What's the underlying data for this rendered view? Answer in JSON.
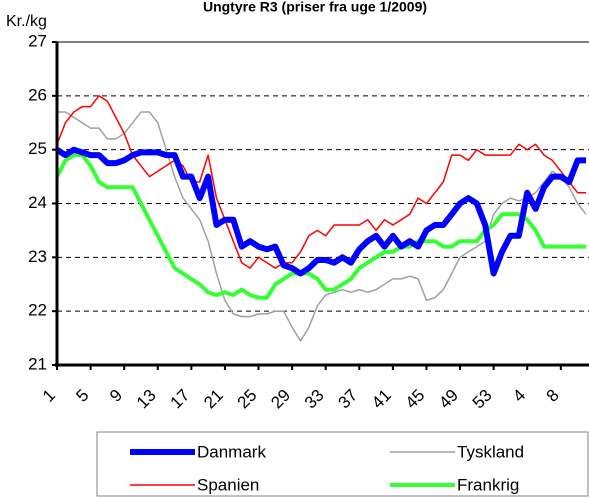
{
  "chart_data": {
    "type": "line",
    "title": "Ungtyre R3 (priser fra uge 1/2009)",
    "y_label": "Kr./kg",
    "categories": [
      1,
      null,
      null,
      null,
      5,
      null,
      null,
      null,
      9,
      null,
      null,
      null,
      13,
      null,
      null,
      null,
      17,
      null,
      null,
      null,
      21,
      null,
      null,
      null,
      25,
      null,
      null,
      null,
      29,
      null,
      null,
      null,
      33,
      null,
      null,
      null,
      37,
      null,
      null,
      null,
      41,
      null,
      null,
      null,
      45,
      null,
      null,
      null,
      49,
      null,
      null,
      null,
      53,
      null,
      null,
      null,
      4,
      null,
      null,
      null,
      8,
      null,
      null,
      null
    ],
    "series": [
      {
        "name": "Danmark",
        "color": "#0000ff",
        "values": [
          25.0,
          24.9,
          25.0,
          24.95,
          24.9,
          24.9,
          24.75,
          24.75,
          24.8,
          24.9,
          24.95,
          24.95,
          24.95,
          24.9,
          24.9,
          24.5,
          24.5,
          24.1,
          24.5,
          23.6,
          23.7,
          23.7,
          23.2,
          23.3,
          23.2,
          23.15,
          23.2,
          22.85,
          22.8,
          22.7,
          22.8,
          22.95,
          22.95,
          22.9,
          23.0,
          22.9,
          23.15,
          23.3,
          23.4,
          23.2,
          23.4,
          23.2,
          23.3,
          23.2,
          23.5,
          23.6,
          23.6,
          23.8,
          24.0,
          24.1,
          24.0,
          23.6,
          22.7,
          23.1,
          23.4,
          23.4,
          24.2,
          23.9,
          24.3,
          24.5,
          24.5,
          24.4,
          24.8,
          24.8
        ]
      },
      {
        "name": "Tyskland",
        "color": "#a0a0a0",
        "values": [
          25.7,
          25.7,
          25.6,
          25.5,
          25.4,
          25.4,
          25.2,
          25.2,
          25.3,
          25.5,
          25.7,
          25.7,
          25.5,
          25.0,
          24.5,
          24.1,
          23.9,
          23.7,
          23.3,
          22.7,
          22.2,
          21.95,
          21.9,
          21.9,
          21.95,
          21.95,
          22.0,
          22.0,
          21.7,
          21.45,
          21.7,
          22.1,
          22.3,
          22.35,
          22.4,
          22.35,
          22.4,
          22.35,
          22.4,
          22.5,
          22.6,
          22.6,
          22.65,
          22.6,
          22.2,
          22.25,
          22.4,
          22.7,
          23.0,
          23.1,
          23.2,
          23.3,
          23.8,
          24.0,
          24.1,
          24.05,
          24.1,
          24.2,
          24.4,
          24.6,
          24.5,
          24.3,
          24.0,
          23.8
        ]
      },
      {
        "name": "Spanien",
        "color": "#ff0000",
        "values": [
          25.1,
          25.5,
          25.7,
          25.8,
          25.8,
          26.0,
          25.9,
          25.6,
          25.3,
          24.9,
          24.7,
          24.5,
          24.6,
          24.7,
          24.8,
          24.7,
          24.4,
          24.4,
          24.9,
          24.1,
          23.7,
          23.3,
          22.9,
          22.8,
          23.0,
          22.9,
          22.8,
          22.9,
          22.9,
          23.1,
          23.4,
          23.5,
          23.4,
          23.6,
          23.6,
          23.6,
          23.6,
          23.7,
          23.5,
          23.7,
          23.6,
          23.7,
          23.8,
          24.1,
          24.0,
          24.2,
          24.4,
          24.9,
          24.9,
          24.8,
          25.0,
          24.9,
          24.9,
          24.9,
          24.9,
          25.1,
          25.0,
          25.1,
          24.9,
          24.8,
          24.6,
          24.4,
          24.2,
          24.2
        ]
      },
      {
        "name": "Frankrig",
        "color": "#33ff33",
        "values": [
          24.5,
          24.8,
          24.9,
          24.9,
          24.7,
          24.4,
          24.3,
          24.3,
          24.3,
          24.3,
          24.0,
          23.7,
          23.4,
          23.1,
          22.8,
          22.7,
          22.6,
          22.5,
          22.35,
          22.3,
          22.35,
          22.3,
          22.4,
          22.3,
          22.25,
          22.25,
          22.5,
          22.6,
          22.7,
          22.7,
          22.7,
          22.6,
          22.4,
          22.4,
          22.5,
          22.6,
          22.8,
          22.9,
          23.0,
          23.1,
          23.1,
          23.2,
          23.2,
          23.3,
          23.3,
          23.3,
          23.2,
          23.2,
          23.3,
          23.3,
          23.3,
          23.5,
          23.6,
          23.8,
          23.8,
          23.8,
          23.7,
          23.5,
          23.2,
          23.2,
          23.2,
          23.2,
          23.2,
          23.2
        ]
      }
    ],
    "ylim": [
      21,
      27
    ],
    "yticks": [
      21,
      22,
      23,
      24,
      25,
      26,
      27
    ],
    "grid": true
  }
}
